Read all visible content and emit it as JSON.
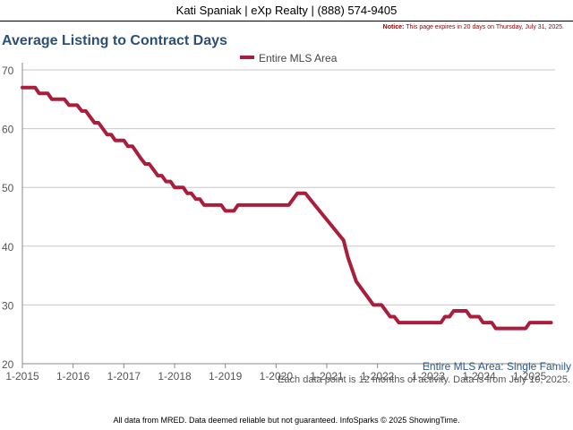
{
  "header": {
    "agent_line": "Kati Spaniak | eXp Realty | (888) 574-9405"
  },
  "notice": {
    "label": "Notice:",
    "text": "This page expires in 20 days on Thursday, July 31, 2025."
  },
  "colors": {
    "series": "#aa1e3c",
    "title": "#2c4f74"
  },
  "chart_data": {
    "type": "line",
    "title": "Average Listing to Contract Days",
    "xlabel": "",
    "ylabel": "",
    "subtitle": "Entire MLS Area: Single Family",
    "ylim": [
      20,
      70
    ],
    "yticks": [
      20,
      30,
      40,
      50,
      60,
      70
    ],
    "xlim": [
      2015.0,
      2025.5
    ],
    "xticks": [
      {
        "label": "1-2015",
        "x": 2015.0
      },
      {
        "label": "1-2016",
        "x": 2016.0
      },
      {
        "label": "1-2017",
        "x": 2017.0
      },
      {
        "label": "1-2018",
        "x": 2018.0
      },
      {
        "label": "1-2019",
        "x": 2019.0
      },
      {
        "label": "1-2020",
        "x": 2020.0
      },
      {
        "label": "1-2021",
        "x": 2021.0
      },
      {
        "label": "1-2022",
        "x": 2022.0
      },
      {
        "label": "1-2023",
        "x": 2023.0
      },
      {
        "label": "1-2024",
        "x": 2024.0
      },
      {
        "label": "1-2025",
        "x": 2025.0
      }
    ],
    "legend": {
      "position": "top-center"
    },
    "grid": true,
    "series": [
      {
        "name": "Entire MLS Area",
        "color": "#aa1e3c",
        "points": [
          [
            2015.0,
            67
          ],
          [
            2015.25,
            67
          ],
          [
            2015.33,
            66
          ],
          [
            2015.5,
            66
          ],
          [
            2015.58,
            65
          ],
          [
            2015.83,
            65
          ],
          [
            2015.92,
            64
          ],
          [
            2016.08,
            64
          ],
          [
            2016.17,
            63
          ],
          [
            2016.25,
            63
          ],
          [
            2016.42,
            61
          ],
          [
            2016.5,
            61
          ],
          [
            2016.67,
            59
          ],
          [
            2016.75,
            59
          ],
          [
            2016.83,
            58
          ],
          [
            2017.0,
            58
          ],
          [
            2017.08,
            57
          ],
          [
            2017.17,
            57
          ],
          [
            2017.33,
            55
          ],
          [
            2017.42,
            54
          ],
          [
            2017.5,
            54
          ],
          [
            2017.67,
            52
          ],
          [
            2017.75,
            52
          ],
          [
            2017.83,
            51
          ],
          [
            2017.92,
            51
          ],
          [
            2018.0,
            50
          ],
          [
            2018.17,
            50
          ],
          [
            2018.25,
            49
          ],
          [
            2018.33,
            49
          ],
          [
            2018.42,
            48
          ],
          [
            2018.5,
            48
          ],
          [
            2018.58,
            47
          ],
          [
            2018.92,
            47
          ],
          [
            2019.0,
            46
          ],
          [
            2019.17,
            46
          ],
          [
            2019.25,
            47
          ],
          [
            2020.25,
            47
          ],
          [
            2020.42,
            49
          ],
          [
            2020.58,
            49
          ],
          [
            2020.67,
            48
          ],
          [
            2021.33,
            41
          ],
          [
            2021.42,
            38
          ],
          [
            2021.58,
            34
          ],
          [
            2021.92,
            30
          ],
          [
            2022.08,
            30
          ],
          [
            2022.25,
            28
          ],
          [
            2022.33,
            28
          ],
          [
            2022.42,
            27
          ],
          [
            2023.25,
            27
          ],
          [
            2023.33,
            28
          ],
          [
            2023.42,
            28
          ],
          [
            2023.5,
            29
          ],
          [
            2023.75,
            29
          ],
          [
            2023.83,
            28
          ],
          [
            2024.0,
            28
          ],
          [
            2024.08,
            27
          ],
          [
            2024.25,
            27
          ],
          [
            2024.33,
            26
          ],
          [
            2024.92,
            26
          ],
          [
            2025.0,
            27
          ],
          [
            2025.42,
            27
          ]
        ]
      }
    ],
    "notes": [
      "Each data point is 12 months of activity. Data is from July 10, 2025."
    ]
  },
  "footer": {
    "text": "All data from MRED. Data deemed reliable but not guaranteed. InfoSparks © 2025 ShowingTime."
  }
}
